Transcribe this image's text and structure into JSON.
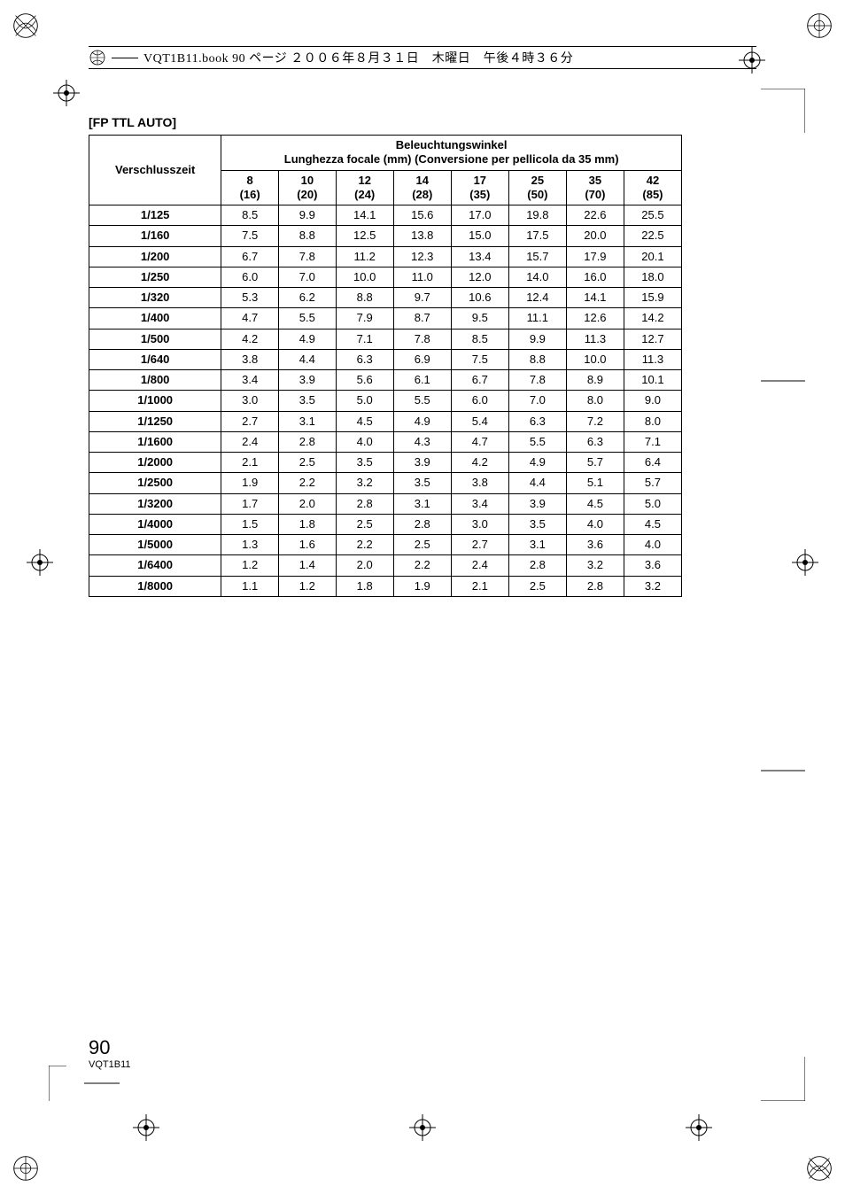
{
  "header_text": "VQT1B11.book  90 ページ  ２００６年８月３１日　木曜日　午後４時３６分",
  "section_title": "[FP TTL AUTO]",
  "table": {
    "corner_label": "Verschlusszeit",
    "super_header": "Beleuchtungswinkel\nLunghezza focale (mm) (Conversione per pellicola da 35 mm)",
    "focal_top": [
      "8",
      "10",
      "12",
      "14",
      "17",
      "25",
      "35",
      "42"
    ],
    "focal_bottom": [
      "(16)",
      "(20)",
      "(24)",
      "(28)",
      "(35)",
      "(50)",
      "(70)",
      "(85)"
    ],
    "rows": [
      {
        "label": "1/125",
        "v": [
          "8.5",
          "9.9",
          "14.1",
          "15.6",
          "17.0",
          "19.8",
          "22.6",
          "25.5"
        ]
      },
      {
        "label": "1/160",
        "v": [
          "7.5",
          "8.8",
          "12.5",
          "13.8",
          "15.0",
          "17.5",
          "20.0",
          "22.5"
        ]
      },
      {
        "label": "1/200",
        "v": [
          "6.7",
          "7.8",
          "11.2",
          "12.3",
          "13.4",
          "15.7",
          "17.9",
          "20.1"
        ]
      },
      {
        "label": "1/250",
        "v": [
          "6.0",
          "7.0",
          "10.0",
          "11.0",
          "12.0",
          "14.0",
          "16.0",
          "18.0"
        ]
      },
      {
        "label": "1/320",
        "v": [
          "5.3",
          "6.2",
          "8.8",
          "9.7",
          "10.6",
          "12.4",
          "14.1",
          "15.9"
        ]
      },
      {
        "label": "1/400",
        "v": [
          "4.7",
          "5.5",
          "7.9",
          "8.7",
          "9.5",
          "11.1",
          "12.6",
          "14.2"
        ]
      },
      {
        "label": "1/500",
        "v": [
          "4.2",
          "4.9",
          "7.1",
          "7.8",
          "8.5",
          "9.9",
          "11.3",
          "12.7"
        ]
      },
      {
        "label": "1/640",
        "v": [
          "3.8",
          "4.4",
          "6.3",
          "6.9",
          "7.5",
          "8.8",
          "10.0",
          "11.3"
        ]
      },
      {
        "label": "1/800",
        "v": [
          "3.4",
          "3.9",
          "5.6",
          "6.1",
          "6.7",
          "7.8",
          "8.9",
          "10.1"
        ]
      },
      {
        "label": "1/1000",
        "v": [
          "3.0",
          "3.5",
          "5.0",
          "5.5",
          "6.0",
          "7.0",
          "8.0",
          "9.0"
        ]
      },
      {
        "label": "1/1250",
        "v": [
          "2.7",
          "3.1",
          "4.5",
          "4.9",
          "5.4",
          "6.3",
          "7.2",
          "8.0"
        ]
      },
      {
        "label": "1/1600",
        "v": [
          "2.4",
          "2.8",
          "4.0",
          "4.3",
          "4.7",
          "5.5",
          "6.3",
          "7.1"
        ]
      },
      {
        "label": "1/2000",
        "v": [
          "2.1",
          "2.5",
          "3.5",
          "3.9",
          "4.2",
          "4.9",
          "5.7",
          "6.4"
        ]
      },
      {
        "label": "1/2500",
        "v": [
          "1.9",
          "2.2",
          "3.2",
          "3.5",
          "3.8",
          "4.4",
          "5.1",
          "5.7"
        ]
      },
      {
        "label": "1/3200",
        "v": [
          "1.7",
          "2.0",
          "2.8",
          "3.1",
          "3.4",
          "3.9",
          "4.5",
          "5.0"
        ]
      },
      {
        "label": "1/4000",
        "v": [
          "1.5",
          "1.8",
          "2.5",
          "2.8",
          "3.0",
          "3.5",
          "4.0",
          "4.5"
        ]
      },
      {
        "label": "1/5000",
        "v": [
          "1.3",
          "1.6",
          "2.2",
          "2.5",
          "2.7",
          "3.1",
          "3.6",
          "4.0"
        ]
      },
      {
        "label": "1/6400",
        "v": [
          "1.2",
          "1.4",
          "2.0",
          "2.2",
          "2.4",
          "2.8",
          "3.2",
          "3.6"
        ]
      },
      {
        "label": "1/8000",
        "v": [
          "1.1",
          "1.2",
          "1.8",
          "1.9",
          "2.1",
          "2.5",
          "2.8",
          "3.2"
        ]
      }
    ]
  },
  "footer": {
    "page": "90",
    "docid": "VQT1B11"
  },
  "colors": {
    "bg": "#ffffff",
    "fg": "#000000"
  }
}
